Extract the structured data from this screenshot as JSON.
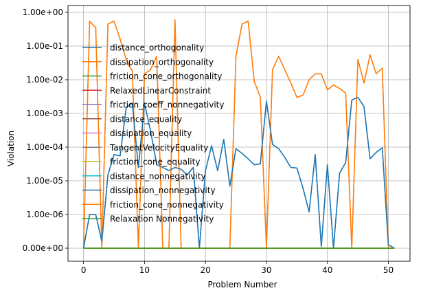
{
  "chart_data": {
    "type": "line",
    "xlabel": "Problem Number",
    "ylabel": "Violation",
    "xlim": [
      -2.55,
      53.55
    ],
    "x_ticks": [
      0,
      10,
      20,
      30,
      40,
      50
    ],
    "y_scale": "symlog",
    "y_ticks": [
      {
        "value": 0,
        "label": "0.00e+00"
      },
      {
        "value": 1e-06,
        "label": "1.00e-06"
      },
      {
        "value": 1e-05,
        "label": "1.00e-05"
      },
      {
        "value": 0.0001,
        "label": "1.00e-04"
      },
      {
        "value": 0.001,
        "label": "1.00e-03"
      },
      {
        "value": 0.01,
        "label": "1.00e-02"
      },
      {
        "value": 0.1,
        "label": "1.00e-01"
      },
      {
        "value": 1,
        "label": "1.00e+00"
      }
    ],
    "grid": true,
    "legend_position": "left, over plot",
    "x": [
      0,
      1,
      2,
      3,
      4,
      5,
      6,
      7,
      8,
      9,
      10,
      11,
      12,
      13,
      14,
      15,
      16,
      17,
      18,
      19,
      20,
      21,
      22,
      23,
      24,
      25,
      26,
      27,
      28,
      29,
      30,
      31,
      32,
      33,
      34,
      35,
      36,
      37,
      38,
      39,
      40,
      41,
      42,
      43,
      44,
      45,
      46,
      47,
      48,
      49,
      50,
      51
    ],
    "series": [
      {
        "name": "distance_orthogonality",
        "color": "#1f77b4",
        "values": [
          0,
          1e-06,
          1e-06,
          2e-07,
          1.5e-05,
          6e-05,
          5.5e-05,
          0.0015,
          0.002,
          2.5e-05,
          0.002,
          0.0003,
          3e-05,
          2.5e-05,
          2e-05,
          2.5e-05,
          2.2e-05,
          1.5e-05,
          2.5e-05,
          0,
          2e-05,
          0.00011,
          2e-05,
          0.00017,
          7e-06,
          9e-05,
          6.5e-05,
          4.5e-05,
          3e-05,
          3.2e-05,
          0.0023,
          0.00012,
          9e-05,
          5e-05,
          2.5e-05,
          2.4e-05,
          6e-06,
          1.2e-06,
          6e-05,
          5e-08,
          3e-05,
          0,
          1.7e-05,
          3.5e-05,
          0.0025,
          0.003,
          0.0016,
          4.5e-05,
          7e-05,
          9.5e-05,
          1e-07,
          0
        ]
      },
      {
        "name": "dissipation_orthogonality",
        "color": "#ff7f0e",
        "values": [
          0,
          0.55,
          0.35,
          0,
          0.45,
          0.55,
          0.16,
          0.04,
          0.018,
          0,
          0.015,
          0.02,
          0.05,
          0,
          0,
          0,
          0,
          0,
          0,
          0,
          0,
          0,
          0,
          0,
          0,
          0.05,
          0.45,
          0.55,
          0.009,
          0.003,
          0,
          0.02,
          0.05,
          0.02,
          0.008,
          0.003,
          0.0035,
          0.01,
          0.015,
          0.015,
          0.005,
          0.007,
          0.0055,
          0.004,
          0,
          0.04,
          0.008,
          0.055,
          0.015,
          0.022,
          0,
          0
        ]
      },
      {
        "name": "friction_cone_orthogonality",
        "color": "#2ca02c",
        "values": "all 0"
      },
      {
        "name": "RelaxedLinearConstraint",
        "color": "#d62728",
        "values": "all 0"
      },
      {
        "name": "friction_coeff_nonnegativity",
        "color": "#9467bd",
        "values": "all 0"
      },
      {
        "name": "distance_equality",
        "color": "#8c564b",
        "values": "all 0"
      },
      {
        "name": "dissipation_equality",
        "color": "#e377c2",
        "values": "all 0"
      },
      {
        "name": "TangentVelocityEquality",
        "color": "#7f7f7f",
        "values": "all 0"
      },
      {
        "name": "friction_cone_equality",
        "color": "#bcbd22",
        "values": "all 0"
      },
      {
        "name": "distance_nonnegativity",
        "color": "#17becf",
        "values": "all 0"
      },
      {
        "name": "dissipation_nonnegativity",
        "color": "#1f77b4",
        "values": "all 0"
      },
      {
        "name": "friction_cone_nonnegativity",
        "color": "#ff7f0e",
        "values": [
          0,
          0,
          0,
          0,
          0,
          0,
          0,
          0,
          0,
          0,
          0,
          0,
          0,
          0,
          0,
          0.6,
          0,
          0,
          0,
          0,
          0,
          0,
          0,
          0,
          0,
          0,
          0,
          0,
          0,
          0,
          0,
          0,
          0,
          0,
          0,
          0,
          0,
          0,
          0,
          0,
          0,
          0,
          0,
          0,
          0,
          0,
          0,
          0,
          0,
          0,
          0,
          0
        ]
      },
      {
        "name": "Relaxation Nonnegativity",
        "color": "#2ca02c",
        "values": "all 0"
      }
    ]
  }
}
